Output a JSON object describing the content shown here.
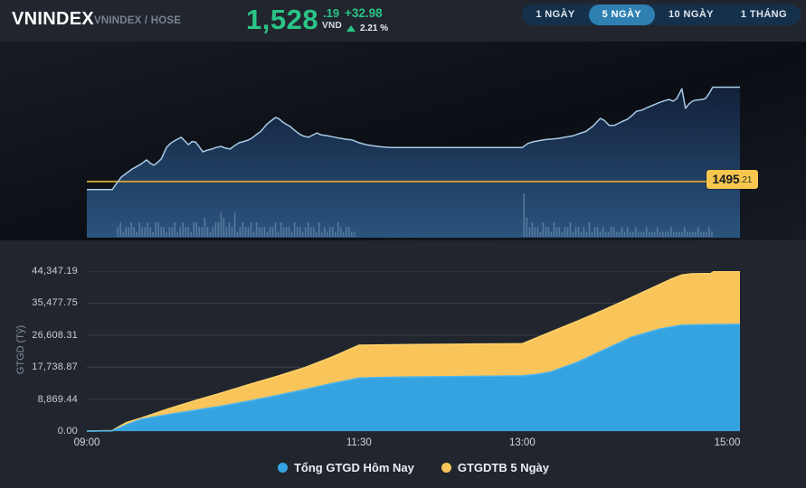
{
  "header": {
    "title": "VNINDEX",
    "subtitle": "VNINDEX / HOSE",
    "price_int": "1,528",
    "price_dec": ".19",
    "currency": "VND",
    "change": "+32.98",
    "change_pct": "2.21 %",
    "up_color": "#2bc487",
    "tabs": [
      {
        "label": "1 NGÀY",
        "active": false
      },
      {
        "label": "5 NGÀY",
        "active": true
      },
      {
        "label": "10 NGÀY",
        "active": false
      },
      {
        "label": "1 THÁNG",
        "active": false
      }
    ]
  },
  "price_chart": {
    "ref_label": {
      "main": "1495",
      "dec": ".21"
    }
  },
  "chart_data": [
    {
      "type": "line",
      "name": "vnindex-intraday-price",
      "x_range_min": [
        0,
        360
      ],
      "x_hours": [
        "09:00",
        "15:00"
      ],
      "y_range": [
        1475.6,
        1541.3
      ],
      "ref_line": {
        "value": 1495.21,
        "color": "#c79d35",
        "label_bg": "#f7c64e"
      },
      "line_color": "#a9cbe6",
      "area_gradient": [
        "#12203a",
        "#2b547e"
      ],
      "series": [
        {
          "name": "VNINDEX",
          "points": [
            [
              0,
              1492.4
            ],
            [
              14,
              1492.4
            ],
            [
              16,
              1494.2
            ],
            [
              19,
              1496.8
            ],
            [
              22,
              1498.2
            ],
            [
              25,
              1499.6
            ],
            [
              27,
              1500.3
            ],
            [
              30,
              1501.4
            ],
            [
              33,
              1502.8
            ],
            [
              35,
              1501.6
            ],
            [
              37,
              1500.9
            ],
            [
              39,
              1501.9
            ],
            [
              41,
              1503.1
            ],
            [
              44,
              1507.2
            ],
            [
              46,
              1508.5
            ],
            [
              49,
              1509.7
            ],
            [
              52,
              1510.7
            ],
            [
              54,
              1509.4
            ],
            [
              56,
              1508.1
            ],
            [
              58,
              1509.2
            ],
            [
              60,
              1509.0
            ],
            [
              62,
              1507.3
            ],
            [
              64,
              1505.6
            ],
            [
              66,
              1506.1
            ],
            [
              69,
              1506.6
            ],
            [
              71,
              1507.1
            ],
            [
              74,
              1507.5
            ],
            [
              76,
              1507.0
            ],
            [
              79,
              1506.6
            ],
            [
              81,
              1507.6
            ],
            [
              84,
              1508.8
            ],
            [
              86,
              1509.1
            ],
            [
              89,
              1509.7
            ],
            [
              91,
              1510.4
            ],
            [
              94,
              1511.9
            ],
            [
              96,
              1512.8
            ],
            [
              99,
              1515.1
            ],
            [
              101,
              1516.2
            ],
            [
              104,
              1517.6
            ],
            [
              106,
              1517.1
            ],
            [
              108,
              1516.0
            ],
            [
              110,
              1515.2
            ],
            [
              112,
              1514.5
            ],
            [
              114,
              1513.4
            ],
            [
              117,
              1511.9
            ],
            [
              119,
              1511.2
            ],
            [
              122,
              1510.7
            ],
            [
              124,
              1511.3
            ],
            [
              127,
              1512.2
            ],
            [
              129,
              1511.5
            ],
            [
              132,
              1511.3
            ],
            [
              135,
              1510.9
            ],
            [
              139,
              1510.4
            ],
            [
              143,
              1510.0
            ],
            [
              146,
              1509.8
            ],
            [
              150,
              1508.8
            ],
            [
              154,
              1508.1
            ],
            [
              158,
              1507.7
            ],
            [
              163,
              1507.3
            ],
            [
              168,
              1507.1
            ],
            [
              240,
              1507.1
            ],
            [
              243,
              1508.5
            ],
            [
              246,
              1509.1
            ],
            [
              250,
              1509.6
            ],
            [
              254,
              1510.0
            ],
            [
              257,
              1510.1
            ],
            [
              260,
              1510.3
            ],
            [
              264,
              1510.8
            ],
            [
              268,
              1511.2
            ],
            [
              271,
              1511.9
            ],
            [
              275,
              1512.7
            ],
            [
              279,
              1514.6
            ],
            [
              283,
              1517.3
            ],
            [
              285,
              1516.7
            ],
            [
              288,
              1514.8
            ],
            [
              291,
              1514.9
            ],
            [
              295,
              1516.2
            ],
            [
              298,
              1517.0
            ],
            [
              301,
              1518.6
            ],
            [
              303,
              1519.8
            ],
            [
              306,
              1520.2
            ],
            [
              309,
              1521.1
            ],
            [
              312,
              1521.9
            ],
            [
              315,
              1522.7
            ],
            [
              318,
              1523.4
            ],
            [
              321,
              1523.9
            ],
            [
              323,
              1523.3
            ],
            [
              325,
              1524.1
            ],
            [
              327,
              1526.4
            ],
            [
              328,
              1527.7
            ],
            [
              330,
              1520.8
            ],
            [
              332,
              1522.4
            ],
            [
              334,
              1523.4
            ],
            [
              336,
              1523.7
            ],
            [
              339,
              1523.9
            ],
            [
              341,
              1524.2
            ],
            [
              343,
              1526.0
            ],
            [
              345,
              1528.2
            ],
            [
              360,
              1528.19
            ]
          ]
        }
      ],
      "volume_bars": {
        "color": "#7b9cbd",
        "opacity": 0.55,
        "morning": {
          "t0": 17,
          "dt": 1.5,
          "heights": "2312232132232133221223123221332242123354232512322313222122313222132212322131212213212211"
        },
        "afternoon": {
          "t0": 241,
          "dt": 1.5,
          "heights": "9423221322132212231221213122121122112121121112111211112111121111211121"
        }
      }
    },
    {
      "type": "area",
      "name": "cumulative-trading-value",
      "ylabel": "GTGD (Tỷ)",
      "ylim": [
        0,
        44347.19
      ],
      "x_range_min": [
        0,
        360
      ],
      "grid": true,
      "legend_position": "bottom",
      "yticks": [
        {
          "label": "44,347.19",
          "value": 44347.19
        },
        {
          "label": "35,477.75",
          "value": 35477.75
        },
        {
          "label": "26,608.31",
          "value": 26608.31
        },
        {
          "label": "17,738.87",
          "value": 17738.87
        },
        {
          "label": "8,869.44",
          "value": 8869.44
        },
        {
          "label": "0.00",
          "value": 0
        }
      ],
      "xticks": [
        {
          "label": "09:00",
          "t": 0
        },
        {
          "label": "11:30",
          "t": 150
        },
        {
          "label": "13:00",
          "t": 240
        },
        {
          "label": "15:00",
          "t": 360
        }
      ],
      "series": [
        {
          "name": "Tổng GTGD Hôm Nay",
          "color": "#35a3e0",
          "stroke": "#4db5ef",
          "points": [
            [
              0,
              0
            ],
            [
              14,
              80
            ],
            [
              18,
              900
            ],
            [
              22,
              1800
            ],
            [
              30,
              3300
            ],
            [
              45,
              4600
            ],
            [
              60,
              5800
            ],
            [
              75,
              7000
            ],
            [
              90,
              8400
            ],
            [
              105,
              9900
            ],
            [
              120,
              11500
            ],
            [
              135,
              13200
            ],
            [
              150,
              14700
            ],
            [
              165,
              14900
            ],
            [
              180,
              15000
            ],
            [
              210,
              15150
            ],
            [
              240,
              15300
            ],
            [
              248,
              15700
            ],
            [
              255,
              16300
            ],
            [
              270,
              19000
            ],
            [
              285,
              22500
            ],
            [
              300,
              26000
            ],
            [
              315,
              28200
            ],
            [
              322,
              28900
            ],
            [
              328,
              29400
            ],
            [
              340,
              29500
            ],
            [
              360,
              29600
            ]
          ]
        },
        {
          "name": "GTGDTB 5 Ngày",
          "color": "#f9c459",
          "stroke": "#ffd26b",
          "points": [
            [
              0,
              0
            ],
            [
              14,
              120
            ],
            [
              18,
              1300
            ],
            [
              22,
              2400
            ],
            [
              30,
              3600
            ],
            [
              45,
              6200
            ],
            [
              60,
              8500
            ],
            [
              75,
              10700
            ],
            [
              90,
              13000
            ],
            [
              105,
              15200
            ],
            [
              120,
              17600
            ],
            [
              135,
              20500
            ],
            [
              150,
              23800
            ],
            [
              165,
              23900
            ],
            [
              180,
              24000
            ],
            [
              210,
              24100
            ],
            [
              240,
              24200
            ],
            [
              255,
              27300
            ],
            [
              270,
              30400
            ],
            [
              285,
              33600
            ],
            [
              300,
              37000
            ],
            [
              315,
              40500
            ],
            [
              322,
              42100
            ],
            [
              328,
              43300
            ],
            [
              333,
              43600
            ],
            [
              344,
              43700
            ],
            [
              346,
              44347.19
            ],
            [
              360,
              44347.19
            ]
          ]
        }
      ]
    }
  ]
}
